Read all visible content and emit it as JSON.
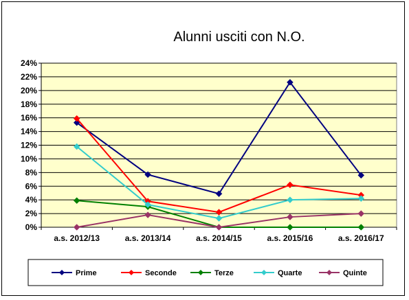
{
  "chart_data": {
    "type": "line",
    "title": "Alunni usciti con N.O.",
    "xlabel": "",
    "ylabel": "",
    "categories": [
      "a.s. 2012/13",
      "a.s. 2013/14",
      "a.s. 2014/15",
      "a.s. 2015/16",
      "a.s. 2016/17"
    ],
    "ylim": [
      0,
      24
    ],
    "yticks": [
      "0%",
      "2%",
      "4%",
      "6%",
      "8%",
      "10%",
      "12%",
      "14%",
      "16%",
      "18%",
      "20%",
      "22%",
      "24%"
    ],
    "grid": true,
    "legend_position": "bottom",
    "series": [
      {
        "name": "Prime",
        "values": [
          15.3,
          7.7,
          4.9,
          21.2,
          7.6
        ],
        "color": "#000080",
        "marker": "diamond"
      },
      {
        "name": "Seconde",
        "values": [
          15.9,
          3.8,
          2.2,
          6.2,
          4.7
        ],
        "color": "#ff0000",
        "marker": "diamond"
      },
      {
        "name": "Terze",
        "values": [
          3.9,
          3.0,
          0,
          0,
          0
        ],
        "color": "#008000",
        "marker": "diamond"
      },
      {
        "name": "Quarte",
        "values": [
          11.8,
          3.3,
          1.3,
          4.0,
          4.2
        ],
        "color": "#33cccc",
        "marker": "diamond"
      },
      {
        "name": "Quinte",
        "values": [
          0,
          1.8,
          0,
          1.5,
          2.0
        ],
        "color": "#993366",
        "marker": "diamond"
      }
    ],
    "plot_background": "#ffffcc"
  }
}
